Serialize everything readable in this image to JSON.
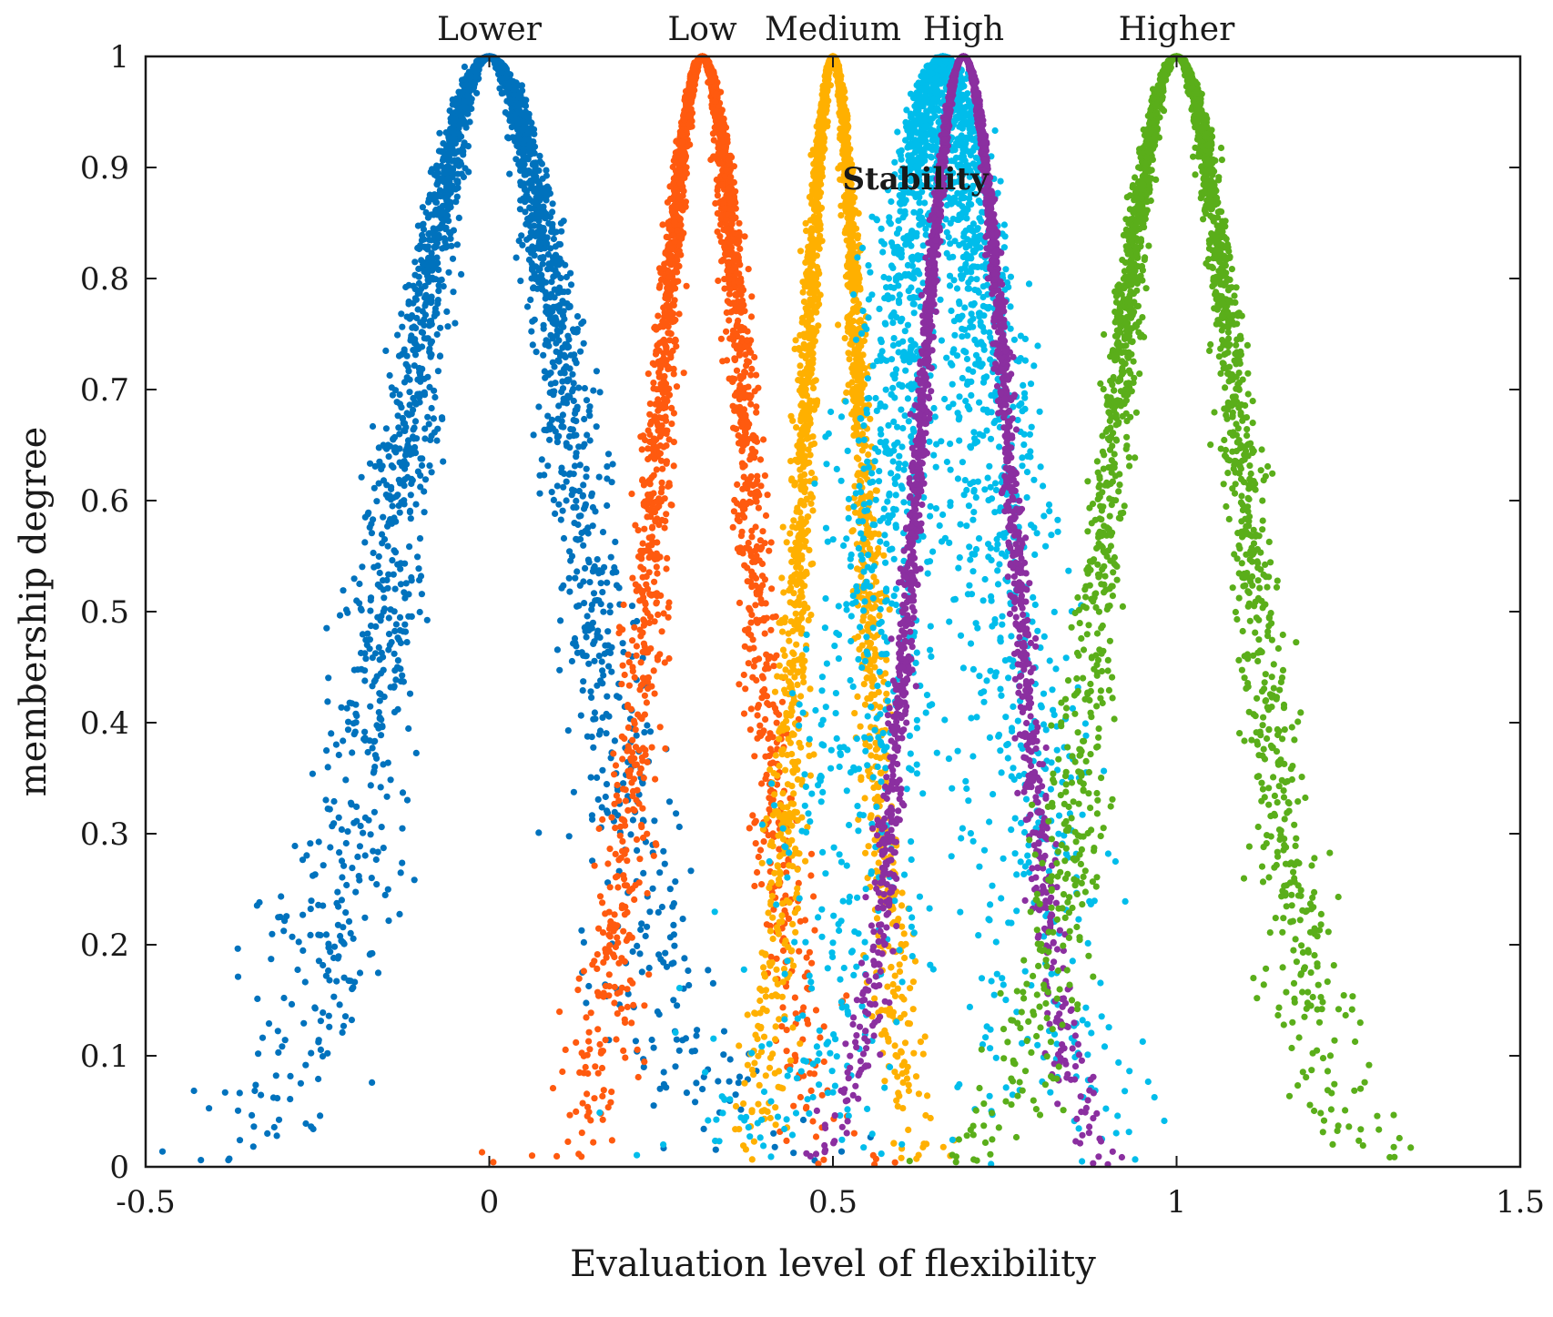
{
  "chart_data": {
    "type": "scatter",
    "title": "",
    "xlabel": "Evaluation level of flexibility",
    "ylabel": "membership degree",
    "xlim": [
      -0.5,
      1.5
    ],
    "ylim": [
      0,
      1
    ],
    "grid": false,
    "x_ticks": [
      -0.5,
      0,
      0.5,
      1,
      1.5
    ],
    "x_tick_labels": [
      "-0.5",
      "0",
      "0.5",
      "1",
      "1.5"
    ],
    "y_ticks": [
      0,
      0.1,
      0.2,
      0.3,
      0.4,
      0.5,
      0.6,
      0.7,
      0.8,
      0.9,
      1
    ],
    "y_tick_labels": [
      "0",
      "0.1",
      "0.2",
      "0.3",
      "0.4",
      "0.5",
      "0.6",
      "0.7",
      "0.8",
      "0.9",
      "1"
    ],
    "series": [
      {
        "name": "Lower",
        "label": "Lower",
        "color": "#0072BD",
        "peak_x": 0,
        "entropy": 0.13,
        "hyper_entropy": 0.025,
        "points": 2500
      },
      {
        "name": "Low",
        "label": "Low",
        "color": "#FF5A0F",
        "peak_x": 0.31,
        "entropy": 0.07,
        "hyper_entropy": 0.012,
        "points": 2500
      },
      {
        "name": "Medium",
        "label": "Medium",
        "color": "#FFB000",
        "peak_x": 0.5,
        "entropy": 0.045,
        "hyper_entropy": 0.009,
        "points": 2500
      },
      {
        "name": "Stability",
        "label": "",
        "color": "#00BDEB",
        "peak_x": 0.66,
        "entropy": 0.08,
        "hyper_entropy": 0.04,
        "points": 2500
      },
      {
        "name": "High",
        "label": "High",
        "color": "#8B2FA0",
        "peak_x": 0.69,
        "entropy": 0.07,
        "hyper_entropy": 0.006,
        "points": 2500
      },
      {
        "name": "Higher",
        "label": "Higher",
        "color": "#5AAE1A",
        "peak_x": 1,
        "entropy": 0.1,
        "hyper_entropy": 0.015,
        "points": 2500
      }
    ],
    "annotations": [
      {
        "text": "Stability",
        "x": 0.62,
        "y": 0.89
      }
    ]
  }
}
